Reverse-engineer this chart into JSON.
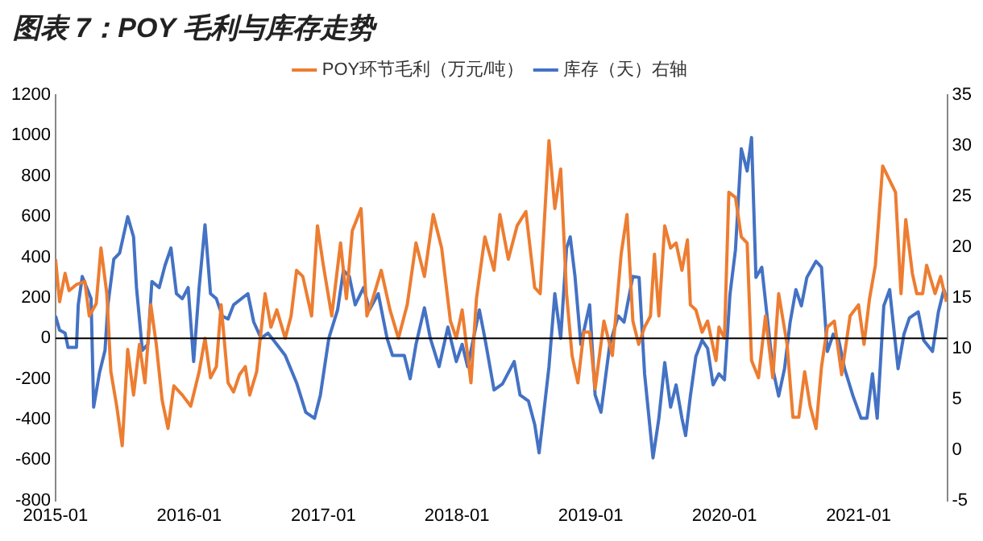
{
  "chart_data": {
    "type": "line",
    "title": "图表 7：POY 毛利与库存走势",
    "legend": "top",
    "grid": false,
    "marker": "none",
    "xlim": [
      "2015-01-01",
      "2021-08-31"
    ],
    "xticks": [
      "2015-01",
      "2016-01",
      "2017-01",
      "2018-01",
      "2019-01",
      "2020-01",
      "2021-01"
    ],
    "ylim": [
      -800,
      1200
    ],
    "yticks": [
      -800,
      -600,
      -400,
      -200,
      0,
      200,
      400,
      600,
      800,
      1000,
      1200
    ],
    "ref_lines": [
      {
        "axis": "y",
        "value": 0,
        "color": "#000000"
      }
    ],
    "y2lim": [
      -5,
      35
    ],
    "y2ticks": [
      -5,
      0,
      5,
      10,
      15,
      20,
      25,
      30,
      35
    ],
    "series": [
      {
        "name": "POY环节毛利（万元/吨）",
        "color": "#ed7d31",
        "x": [
          "2015-01-01",
          "2015-01-12",
          "2015-01-27",
          "2015-02-07",
          "2015-02-27",
          "2015-03-22",
          "2015-04-03",
          "2015-04-22",
          "2015-05-05",
          "2015-05-21",
          "2015-06-01",
          "2015-06-17",
          "2015-07-02",
          "2015-07-17",
          "2015-08-02",
          "2015-08-18",
          "2015-09-02",
          "2015-09-18",
          "2015-10-03",
          "2015-10-19",
          "2015-11-04",
          "2015-11-20",
          "2015-12-13",
          "2016-01-05",
          "2016-01-28",
          "2016-02-13",
          "2016-02-28",
          "2016-03-15",
          "2016-03-28",
          "2016-04-16",
          "2016-05-01",
          "2016-05-17",
          "2016-06-02",
          "2016-06-14",
          "2016-07-03",
          "2016-07-26",
          "2016-08-11",
          "2016-08-27",
          "2016-09-19",
          "2016-10-05",
          "2016-10-20",
          "2016-11-06",
          "2016-11-30",
          "2016-12-16",
          "2017-01-01",
          "2017-01-24",
          "2017-02-17",
          "2017-03-05",
          "2017-03-21",
          "2017-04-14",
          "2017-04-30",
          "2017-05-16",
          "2017-06-08",
          "2017-07-02",
          "2017-07-25",
          "2017-08-18",
          "2017-09-11",
          "2017-10-04",
          "2017-10-28",
          "2017-11-20",
          "2017-12-14",
          "2017-12-30",
          "2018-01-15",
          "2018-02-08",
          "2018-02-23",
          "2018-03-18",
          "2018-04-12",
          "2018-04-28",
          "2018-05-21",
          "2018-06-14",
          "2018-07-08",
          "2018-08-01",
          "2018-08-16",
          "2018-09-09",
          "2018-09-25",
          "2018-10-11",
          "2018-10-27",
          "2018-11-11",
          "2018-11-27",
          "2018-12-13",
          "2018-12-29",
          "2019-01-13",
          "2019-02-06",
          "2019-03-01",
          "2019-03-25",
          "2019-04-10",
          "2019-04-26",
          "2019-05-12",
          "2019-05-28",
          "2019-06-13",
          "2019-06-24",
          "2019-07-06",
          "2019-07-22",
          "2019-08-07",
          "2019-08-22",
          "2019-09-07",
          "2019-09-22",
          "2019-09-30",
          "2019-10-15",
          "2019-11-01",
          "2019-11-16",
          "2019-12-09",
          "2019-12-17",
          "2020-01-01",
          "2020-01-13",
          "2020-01-31",
          "2020-02-16",
          "2020-03-03",
          "2020-03-15",
          "2020-04-03",
          "2020-04-22",
          "2020-05-12",
          "2020-05-28",
          "2020-06-20",
          "2020-07-06",
          "2020-07-22",
          "2020-08-07",
          "2020-08-22",
          "2020-09-07",
          "2020-09-22",
          "2020-10-08",
          "2020-10-27",
          "2020-11-16",
          "2020-12-09",
          "2021-01-01",
          "2021-01-16",
          "2021-01-31",
          "2021-02-16",
          "2021-03-08",
          "2021-03-27",
          "2021-04-12",
          "2021-04-27",
          "2021-05-10",
          "2021-05-28",
          "2021-06-09",
          "2021-06-25",
          "2021-07-06",
          "2021-07-29",
          "2021-08-13",
          "2021-08-29"
        ],
        "values": [
          390,
          180,
          320,
          235,
          265,
          280,
          110,
          170,
          445,
          220,
          -165,
          -335,
          -530,
          -55,
          -280,
          -30,
          -220,
          165,
          -30,
          -305,
          -445,
          -235,
          -280,
          -335,
          -165,
          0,
          -195,
          -140,
          165,
          -220,
          -265,
          -180,
          -140,
          -280,
          -165,
          220,
          55,
          140,
          0,
          110,
          335,
          305,
          110,
          555,
          360,
          110,
          470,
          195,
          530,
          640,
          110,
          195,
          335,
          140,
          0,
          165,
          470,
          305,
          610,
          445,
          85,
          0,
          140,
          -220,
          195,
          500,
          335,
          610,
          390,
          555,
          625,
          250,
          220,
          975,
          640,
          835,
          220,
          -85,
          -220,
          30,
          30,
          -250,
          85,
          -85,
          415,
          610,
          85,
          -30,
          55,
          110,
          415,
          110,
          555,
          445,
          470,
          335,
          485,
          165,
          140,
          30,
          85,
          -110,
          55,
          0,
          720,
          695,
          500,
          470,
          -110,
          -195,
          110,
          -195,
          220,
          -30,
          -390,
          -390,
          -165,
          -335,
          -445,
          -140,
          55,
          85,
          -180,
          110,
          165,
          -30,
          195,
          360,
          850,
          780,
          720,
          220,
          585,
          320,
          220,
          220,
          360,
          220,
          305,
          180
        ]
      },
      {
        "name": "库存（天）右轴",
        "color": "#4472c4",
        "axis": "y2",
        "x": [
          "2015-01-01",
          "2015-01-12",
          "2015-01-27",
          "2015-02-04",
          "2015-02-27",
          "2015-03-04",
          "2015-03-15",
          "2015-04-08",
          "2015-04-15",
          "2015-05-01",
          "2015-05-16",
          "2015-05-24",
          "2015-06-09",
          "2015-06-25",
          "2015-07-17",
          "2015-08-02",
          "2015-08-10",
          "2015-08-26",
          "2015-09-10",
          "2015-09-21",
          "2015-10-11",
          "2015-10-27",
          "2015-11-12",
          "2015-11-27",
          "2015-12-13",
          "2015-12-29",
          "2016-01-13",
          "2016-01-28",
          "2016-02-13",
          "2016-02-28",
          "2016-03-15",
          "2016-03-31",
          "2016-04-16",
          "2016-05-01",
          "2016-06-09",
          "2016-06-25",
          "2016-07-15",
          "2016-08-03",
          "2016-08-27",
          "2016-09-19",
          "2016-10-21",
          "2016-11-14",
          "2016-12-08",
          "2016-12-24",
          "2017-01-16",
          "2017-02-09",
          "2017-02-25",
          "2017-03-13",
          "2017-03-29",
          "2017-04-21",
          "2017-05-07",
          "2017-05-31",
          "2017-06-24",
          "2017-07-09",
          "2017-08-10",
          "2017-08-26",
          "2017-09-11",
          "2017-10-04",
          "2017-10-20",
          "2017-11-13",
          "2017-12-07",
          "2017-12-30",
          "2018-01-15",
          "2018-01-30",
          "2018-03-03",
          "2018-03-18",
          "2018-04-12",
          "2018-05-05",
          "2018-06-06",
          "2018-06-22",
          "2018-07-15",
          "2018-08-01",
          "2018-08-13",
          "2018-08-24",
          "2018-09-09",
          "2018-09-25",
          "2018-10-11",
          "2018-10-27",
          "2018-11-06",
          "2018-11-19",
          "2018-12-05",
          "2018-12-29",
          "2019-01-13",
          "2019-01-29",
          "2019-02-22",
          "2019-03-17",
          "2019-04-02",
          "2019-04-26",
          "2019-05-13",
          "2019-05-28",
          "2019-06-20",
          "2019-07-06",
          "2019-07-22",
          "2019-08-07",
          "2019-08-22",
          "2019-09-07",
          "2019-09-17",
          "2019-09-30",
          "2019-10-15",
          "2019-11-01",
          "2019-11-16",
          "2019-12-01",
          "2019-12-17",
          "2020-01-01",
          "2020-01-16",
          "2020-01-31",
          "2020-02-16",
          "2020-03-03",
          "2020-03-15",
          "2020-03-27",
          "2020-04-12",
          "2020-04-27",
          "2020-05-12",
          "2020-05-28",
          "2020-06-13",
          "2020-06-28",
          "2020-07-14",
          "2020-07-29",
          "2020-08-13",
          "2020-09-07",
          "2020-09-22",
          "2020-10-08",
          "2020-10-24",
          "2020-11-08",
          "2020-11-24",
          "2020-12-17",
          "2021-01-08",
          "2021-01-24",
          "2021-02-08",
          "2021-02-21",
          "2021-03-11",
          "2021-03-27",
          "2021-04-19",
          "2021-05-05",
          "2021-05-20",
          "2021-06-13",
          "2021-06-28",
          "2021-07-22",
          "2021-08-07",
          "2021-08-22",
          "2021-08-31"
        ],
        "values": [
          13.2,
          11.8,
          11.5,
          10.1,
          10.1,
          14.3,
          17.1,
          14.9,
          4.2,
          7.6,
          9.8,
          14.3,
          18.8,
          19.4,
          23,
          21,
          16,
          9.8,
          10.4,
          16.6,
          16,
          18.2,
          19.9,
          15.4,
          14.9,
          16,
          8.7,
          16,
          22.2,
          15.4,
          14.9,
          13.2,
          12.9,
          14.3,
          15.4,
          12.6,
          11,
          11.5,
          10.4,
          9.3,
          6.5,
          3.7,
          3.1,
          5.4,
          11,
          13.8,
          17.7,
          17.1,
          14.3,
          16,
          13.8,
          15.4,
          11,
          9.3,
          9.3,
          7,
          10.4,
          14,
          11,
          8.2,
          12.1,
          8.7,
          10.4,
          8.2,
          13.8,
          11,
          5.9,
          6.5,
          8.7,
          5.4,
          4.8,
          2.5,
          -0.3,
          3.1,
          8.2,
          15.4,
          11,
          19.9,
          21,
          17.1,
          10.4,
          14.3,
          5.4,
          3.7,
          10.4,
          13.2,
          12.6,
          17.1,
          17,
          7.5,
          -0.8,
          3.1,
          8.6,
          4.2,
          6.4,
          3.1,
          1.4,
          5.3,
          9.2,
          10.8,
          10,
          6.4,
          7.5,
          6.9,
          15.3,
          19.7,
          29.7,
          27.5,
          30.8,
          17,
          18,
          13,
          8,
          5.3,
          8,
          12.5,
          15.8,
          14.2,
          17,
          18.6,
          18,
          9.7,
          11.4,
          10.8,
          8,
          5.3,
          3.1,
          3.1,
          7.5,
          3.1,
          14.2,
          15.8,
          8,
          11.4,
          13,
          13.6,
          10.8,
          9.7,
          13.6,
          15.8,
          14.7
        ]
      }
    ]
  }
}
